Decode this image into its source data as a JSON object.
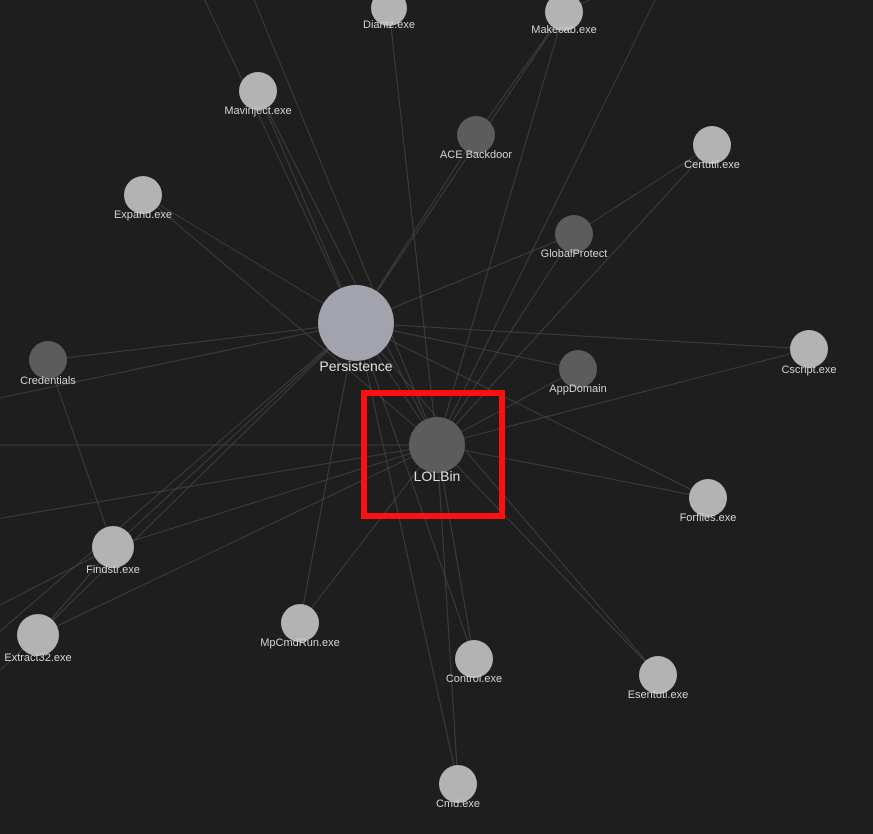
{
  "graph": {
    "colors": {
      "background": "#1e1e1e",
      "edge": "#4a4a4a",
      "note_node": "#b3b3b3",
      "tag_node": "#5c5c5c",
      "hub_node": "#a3a3ad",
      "label": "#d4d4d4",
      "highlight": "#ff1010"
    },
    "nodes": [
      {
        "id": "persistence",
        "label": "Persistence",
        "kind": "hub"
      },
      {
        "id": "lolbin",
        "label": "LOLBin",
        "kind": "tag",
        "highlighted": true
      },
      {
        "id": "diantz",
        "label": "Diantz.exe",
        "kind": "note"
      },
      {
        "id": "makecab",
        "label": "Makecab.exe",
        "kind": "note"
      },
      {
        "id": "mavinject",
        "label": "Mavinject.exe",
        "kind": "note"
      },
      {
        "id": "ace",
        "label": "ACE Backdoor",
        "kind": "tag"
      },
      {
        "id": "certutil",
        "label": "Certutil.exe",
        "kind": "note"
      },
      {
        "id": "expand",
        "label": "Expand.exe",
        "kind": "note"
      },
      {
        "id": "globalprotect",
        "label": "GlobalProtect",
        "kind": "tag"
      },
      {
        "id": "credentials",
        "label": "Credentials",
        "kind": "tag"
      },
      {
        "id": "appdomain",
        "label": "AppDomain",
        "kind": "tag"
      },
      {
        "id": "cscript",
        "label": "Cscript.exe",
        "kind": "note"
      },
      {
        "id": "forfiles",
        "label": "Forfiles.exe",
        "kind": "note"
      },
      {
        "id": "findstr",
        "label": "Findstr.exe",
        "kind": "note"
      },
      {
        "id": "extract32",
        "label": "Extract32.exe",
        "kind": "note"
      },
      {
        "id": "mpcmdrun",
        "label": "MpCmdRun.exe",
        "kind": "note"
      },
      {
        "id": "control",
        "label": "Control.exe",
        "kind": "note"
      },
      {
        "id": "esentutl",
        "label": "Esentutl.exe",
        "kind": "note"
      },
      {
        "id": "cmd",
        "label": "Cmd.exe",
        "kind": "note"
      }
    ]
  }
}
